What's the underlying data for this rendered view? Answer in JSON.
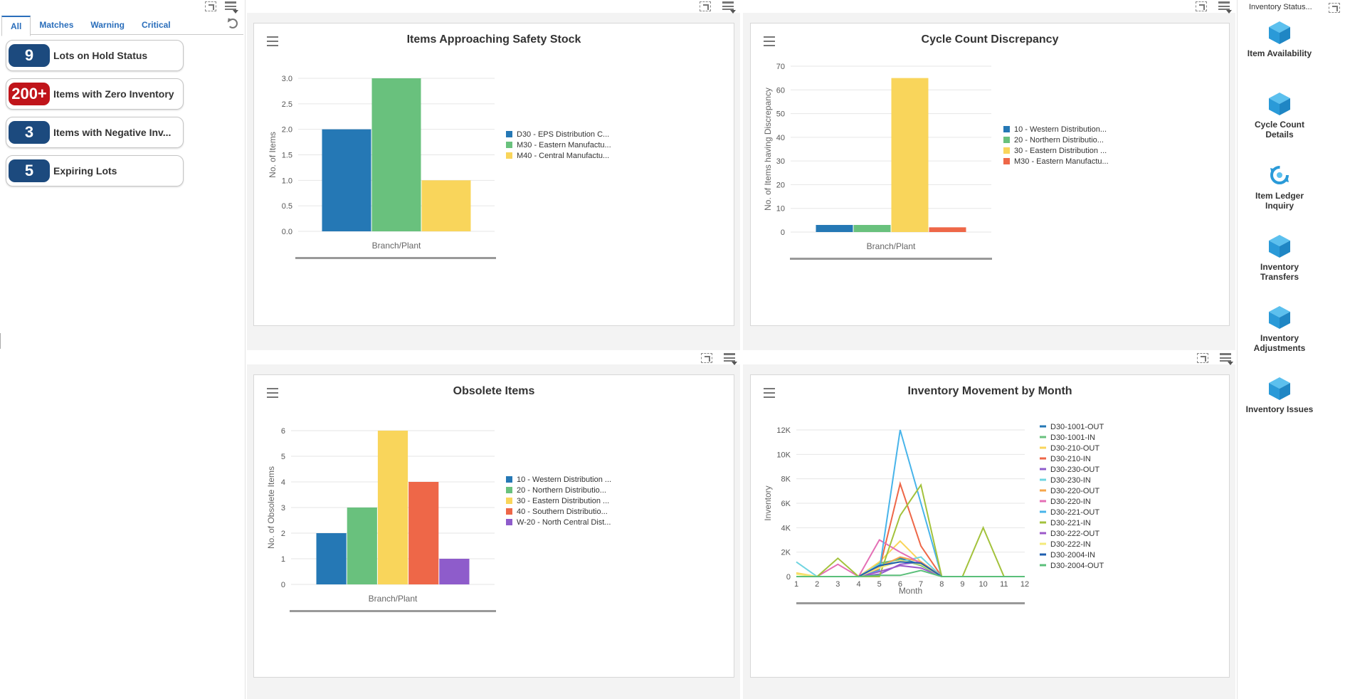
{
  "watchlist": {
    "tabs": [
      "All",
      "Matches",
      "Warning",
      "Critical"
    ],
    "items": [
      {
        "count": "9",
        "label": "Lots on Hold Status",
        "color": "blue"
      },
      {
        "count": "200+",
        "label": "Items with Zero Inventory",
        "color": "red"
      },
      {
        "count": "3",
        "label": "Items with Negative Inv...",
        "color": "blue"
      },
      {
        "count": "5",
        "label": "Expiring Lots",
        "color": "blue"
      }
    ]
  },
  "charts": {
    "safety": {
      "title": "Items Approaching Safety Stock",
      "xlabel": "Branch/Plant",
      "ylabel": "No. of Items",
      "yticks": [
        "0.0",
        "0.5",
        "1.0",
        "1.5",
        "2.0",
        "2.5",
        "3.0"
      ],
      "legend": [
        "D30 - EPS Distribution C...",
        "M30 - Eastern Manufactu...",
        "M40 - Central Manufactu..."
      ]
    },
    "cycle": {
      "title": "Cycle Count Discrepancy",
      "xlabel": "Branch/Plant",
      "ylabel": "No. of Items having Discrepancy",
      "yticks": [
        "0",
        "10",
        "20",
        "30",
        "40",
        "50",
        "60",
        "70"
      ],
      "legend": [
        "10 - Western Distribution...",
        "20 - Northern Distributio...",
        "30 - Eastern Distribution ...",
        "M30 - Eastern Manufactu..."
      ]
    },
    "obsolete": {
      "title": "Obsolete Items",
      "xlabel": "Branch/Plant",
      "ylabel": "No. of Obsolete Items",
      "yticks": [
        "0",
        "1",
        "2",
        "3",
        "4",
        "5",
        "6"
      ],
      "legend": [
        "10 - Western Distribution ...",
        "20 - Northern Distributio...",
        "30 - Eastern Distribution ...",
        "40 - Southern Distributio...",
        "W-20 - North Central Dist..."
      ]
    },
    "movement": {
      "title": "Inventory Movement by Month",
      "xlabel": "Month",
      "ylabel": "Inventory",
      "yticks": [
        "0",
        "2K",
        "4K",
        "6K",
        "8K",
        "10K",
        "12K"
      ],
      "xticks": [
        "1",
        "2",
        "3",
        "4",
        "5",
        "6",
        "7",
        "8",
        "9",
        "10",
        "11",
        "12"
      ],
      "legend": [
        "D30-1001-OUT",
        "D30-1001-IN",
        "D30-210-OUT",
        "D30-210-IN",
        "D30-230-OUT",
        "D30-230-IN",
        "D30-220-OUT",
        "D30-220-IN",
        "D30-221-OUT",
        "D30-221-IN",
        "D30-222-OUT",
        "D30-222-IN",
        "D30-2004-IN",
        "D30-2004-OUT"
      ]
    }
  },
  "chart_data": [
    {
      "type": "bar",
      "title": "Items Approaching Safety Stock",
      "xlabel": "Branch/Plant",
      "ylabel": "No. of Items",
      "ylim": [
        0,
        3
      ],
      "series": [
        {
          "name": "D30 - EPS Distribution C...",
          "values": [
            2
          ],
          "color": "#2578b5"
        },
        {
          "name": "M30 - Eastern Manufactu...",
          "values": [
            3
          ],
          "color": "#69c17d"
        },
        {
          "name": "M40 - Central Manufactu...",
          "values": [
            1
          ],
          "color": "#f9d55b"
        }
      ]
    },
    {
      "type": "bar",
      "title": "Cycle Count Discrepancy",
      "xlabel": "Branch/Plant",
      "ylabel": "No. of Items having Discrepancy",
      "ylim": [
        0,
        70
      ],
      "series": [
        {
          "name": "10 - Western Distribution...",
          "values": [
            3
          ],
          "color": "#2578b5"
        },
        {
          "name": "20 - Northern Distributio...",
          "values": [
            3
          ],
          "color": "#69c17d"
        },
        {
          "name": "30 - Eastern Distribution ...",
          "values": [
            65
          ],
          "color": "#f9d55b"
        },
        {
          "name": "M30 - Eastern Manufactu...",
          "values": [
            2
          ],
          "color": "#ee6748"
        }
      ]
    },
    {
      "type": "bar",
      "title": "Obsolete Items",
      "xlabel": "Branch/Plant",
      "ylabel": "No. of Obsolete Items",
      "ylim": [
        0,
        6
      ],
      "series": [
        {
          "name": "10 - Western Distribution ...",
          "values": [
            2
          ],
          "color": "#2578b5"
        },
        {
          "name": "20 - Northern Distributio...",
          "values": [
            3
          ],
          "color": "#69c17d"
        },
        {
          "name": "30 - Eastern Distribution ...",
          "values": [
            6
          ],
          "color": "#f9d55b"
        },
        {
          "name": "40 - Southern Distributio...",
          "values": [
            4
          ],
          "color": "#ee6748"
        },
        {
          "name": "W-20 - North Central Dist...",
          "values": [
            1
          ],
          "color": "#8e5ccb"
        }
      ]
    },
    {
      "type": "line",
      "title": "Inventory Movement by Month",
      "xlabel": "Month",
      "ylabel": "Inventory",
      "x": [
        1,
        2,
        3,
        4,
        5,
        6,
        7,
        8,
        9,
        10,
        11,
        12
      ],
      "ylim": [
        0,
        12000
      ],
      "series": [
        {
          "name": "D30-1001-OUT",
          "color": "#2578b5",
          "values": [
            0,
            0,
            0,
            0,
            900,
            1500,
            1000,
            0,
            0,
            0,
            0,
            0
          ]
        },
        {
          "name": "D30-1001-IN",
          "color": "#69c17d",
          "values": [
            0,
            0,
            0,
            0,
            1100,
            1400,
            900,
            0,
            0,
            0,
            0,
            0
          ]
        },
        {
          "name": "D30-210-OUT",
          "color": "#f9d55b",
          "values": [
            300,
            0,
            0,
            0,
            1200,
            2900,
            1200,
            0,
            0,
            0,
            0,
            0
          ]
        },
        {
          "name": "D30-210-IN",
          "color": "#ee6748",
          "values": [
            0,
            0,
            0,
            0,
            600,
            7600,
            2500,
            0,
            0,
            0,
            0,
            0
          ]
        },
        {
          "name": "D30-230-OUT",
          "color": "#8e5ccb",
          "values": [
            0,
            0,
            0,
            0,
            200,
            1000,
            1200,
            0,
            0,
            0,
            0,
            0
          ]
        },
        {
          "name": "D30-230-IN",
          "color": "#6fd4e0",
          "values": [
            1200,
            0,
            0,
            0,
            1000,
            1200,
            1600,
            0,
            0,
            0,
            0,
            0
          ]
        },
        {
          "name": "D30-220-OUT",
          "color": "#f5a64b",
          "values": [
            0,
            0,
            0,
            0,
            800,
            1600,
            1200,
            0,
            0,
            0,
            0,
            0
          ]
        },
        {
          "name": "D30-220-IN",
          "color": "#e46fb5",
          "values": [
            0,
            0,
            1000,
            0,
            3000,
            2000,
            1100,
            0,
            0,
            0,
            0,
            0
          ]
        },
        {
          "name": "D30-221-OUT",
          "color": "#48b4ea",
          "values": [
            0,
            0,
            0,
            0,
            500,
            12000,
            6000,
            0,
            0,
            0,
            0,
            0
          ]
        },
        {
          "name": "D30-221-IN",
          "color": "#a3c23c",
          "values": [
            0,
            0,
            1500,
            0,
            0,
            5000,
            7500,
            0,
            0,
            4000,
            0,
            0
          ]
        },
        {
          "name": "D30-222-OUT",
          "color": "#9c59c9",
          "values": [
            0,
            0,
            0,
            0,
            400,
            900,
            700,
            0,
            0,
            0,
            0,
            0
          ]
        },
        {
          "name": "D30-222-IN",
          "color": "#f4ea7a",
          "values": [
            200,
            0,
            0,
            0,
            700,
            1300,
            1000,
            0,
            0,
            0,
            0,
            0
          ]
        },
        {
          "name": "D30-2004-IN",
          "color": "#1f5fb0",
          "values": [
            0,
            0,
            0,
            0,
            900,
            1200,
            1100,
            0,
            0,
            0,
            0,
            0
          ]
        },
        {
          "name": "D30-2004-OUT",
          "color": "#5bbf7a",
          "values": [
            0,
            0,
            0,
            0,
            100,
            100,
            500,
            0,
            0,
            0,
            0,
            0
          ]
        }
      ]
    }
  ],
  "springboard": {
    "header": "Inventory Status...",
    "items": [
      {
        "line1": "Item Availability",
        "line2": ""
      },
      {
        "line1": "Cycle Count",
        "line2": "Details"
      },
      {
        "line1": "Item Ledger",
        "line2": "Inquiry"
      },
      {
        "line1": "Inventory",
        "line2": "Transfers"
      },
      {
        "line1": "Inventory",
        "line2": "Adjustments"
      },
      {
        "line1": "Inventory Issues",
        "line2": ""
      }
    ]
  },
  "colors": {
    "accent": "#2a6ebb",
    "badge_blue": "#1c4a7e",
    "badge_red": "#c0141a",
    "cube": "#2aa1e0"
  }
}
